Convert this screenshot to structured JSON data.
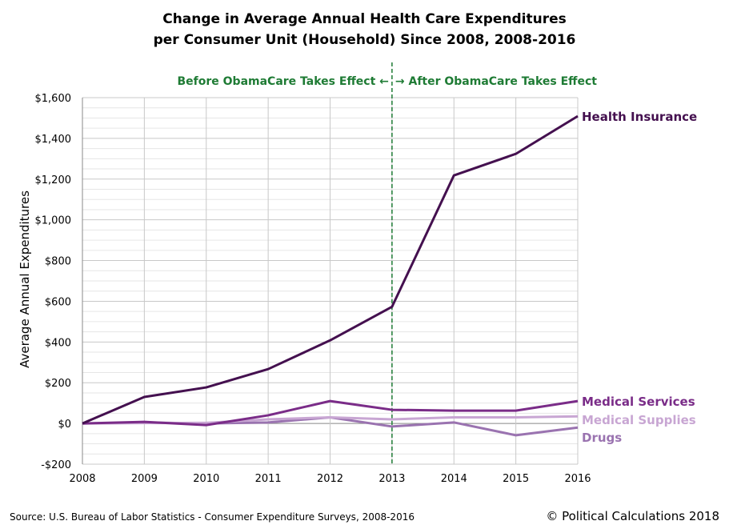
{
  "chart_data": {
    "type": "line",
    "title": [
      "Change in Average Annual Health Care Expenditures",
      "per Consumer Unit (Household) Since 2008, 2008-2016"
    ],
    "xlabel": "",
    "ylabel": "Average Annual Expenditures",
    "x": [
      2008,
      2009,
      2010,
      2011,
      2012,
      2013,
      2014,
      2015,
      2016
    ],
    "ylim": [
      -200,
      1600
    ],
    "yticks": [
      -200,
      0,
      200,
      400,
      600,
      800,
      1000,
      1200,
      1400,
      1600
    ],
    "ytick_labels": [
      "-$200",
      "$0",
      "$200",
      "$400",
      "$600",
      "$800",
      "$1,000",
      "$1,200",
      "$1,400",
      "$1,600"
    ],
    "grid": true,
    "legend": "direct labels at line ends (right)",
    "series": [
      {
        "name": "Health Insurance",
        "color": "#44104f",
        "values": [
          0,
          130,
          177,
          267,
          408,
          573,
          1218,
          1324,
          1509
        ]
      },
      {
        "name": "Medical Services",
        "color": "#7a2c88",
        "values": [
          0,
          8,
          -8,
          40,
          110,
          67,
          63,
          63,
          110
        ]
      },
      {
        "name": "Medical Supplies",
        "color": "#c8a6d3",
        "values": [
          0,
          2,
          3,
          20,
          30,
          20,
          30,
          30,
          35
        ]
      },
      {
        "name": "Drugs",
        "color": "#9a73b0",
        "values": [
          0,
          5,
          0,
          5,
          30,
          -15,
          5,
          -58,
          -20
        ]
      }
    ],
    "annotation": {
      "x": 2013,
      "color": "#1e7b34",
      "left_text": "Before ObamaCare Takes Effect ←",
      "right_text": "→ After ObamaCare Takes Effect"
    }
  },
  "footer": {
    "source": "Source: U.S. Bureau of Labor Statistics - Consumer Expenditure Surveys, 2008-2016",
    "copyright": "© Political Calculations 2018"
  }
}
